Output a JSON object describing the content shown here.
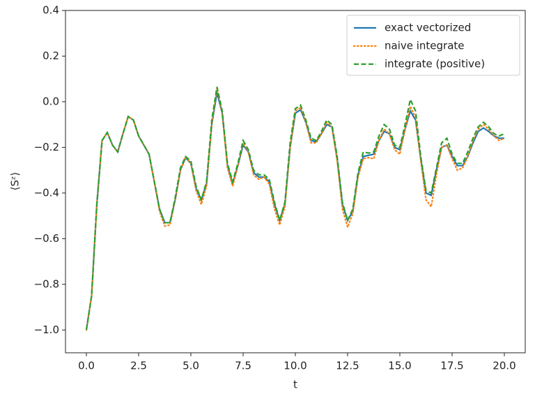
{
  "chart_data": {
    "type": "line",
    "xlabel": "t",
    "ylabel": "⟨Sᶻ⟩",
    "x": [
      0,
      0.25,
      0.5,
      0.75,
      1,
      1.25,
      1.5,
      1.75,
      2,
      2.25,
      2.5,
      2.75,
      3,
      3.25,
      3.5,
      3.75,
      4,
      4.25,
      4.5,
      4.75,
      5,
      5.25,
      5.5,
      5.75,
      6,
      6.25,
      6.5,
      6.75,
      7,
      7.25,
      7.5,
      7.75,
      8,
      8.25,
      8.5,
      8.75,
      9,
      9.25,
      9.5,
      9.75,
      10,
      10.25,
      10.5,
      10.75,
      11,
      11.25,
      11.5,
      11.75,
      12,
      12.25,
      12.5,
      12.75,
      13,
      13.25,
      13.5,
      13.75,
      14,
      14.25,
      14.5,
      14.75,
      15,
      15.25,
      15.5,
      15.75,
      16,
      16.25,
      16.5,
      16.75,
      17,
      17.25,
      17.5,
      17.75,
      18,
      18.25,
      18.5,
      18.75,
      19,
      19.25,
      19.5,
      19.75,
      20
    ],
    "series": [
      {
        "name": "exact vectorized",
        "color": "#1f77b4",
        "style": "solid",
        "values": [
          -1,
          -0.85,
          -0.45,
          -0.17,
          -0.135,
          -0.19,
          -0.22,
          -0.14,
          -0.065,
          -0.08,
          -0.15,
          -0.19,
          -0.23,
          -0.35,
          -0.47,
          -0.53,
          -0.53,
          -0.43,
          -0.3,
          -0.245,
          -0.27,
          -0.38,
          -0.43,
          -0.36,
          -0.1,
          0.04,
          -0.05,
          -0.28,
          -0.36,
          -0.28,
          -0.19,
          -0.22,
          -0.31,
          -0.33,
          -0.33,
          -0.35,
          -0.45,
          -0.52,
          -0.45,
          -0.2,
          -0.05,
          -0.035,
          -0.09,
          -0.17,
          -0.175,
          -0.14,
          -0.1,
          -0.11,
          -0.25,
          -0.45,
          -0.52,
          -0.48,
          -0.32,
          -0.24,
          -0.235,
          -0.23,
          -0.17,
          -0.13,
          -0.14,
          -0.2,
          -0.21,
          -0.12,
          -0.04,
          -0.08,
          -0.25,
          -0.4,
          -0.41,
          -0.3,
          -0.2,
          -0.19,
          -0.24,
          -0.28,
          -0.28,
          -0.24,
          -0.18,
          -0.13,
          -0.115,
          -0.13,
          -0.15,
          -0.16,
          -0.16
        ]
      },
      {
        "name": "naive integrate",
        "color": "#ff7f0e",
        "style": "dotted",
        "values": [
          -1,
          -0.85,
          -0.45,
          -0.17,
          -0.135,
          -0.19,
          -0.22,
          -0.14,
          -0.065,
          -0.08,
          -0.15,
          -0.19,
          -0.23,
          -0.35,
          -0.48,
          -0.545,
          -0.54,
          -0.43,
          -0.3,
          -0.24,
          -0.27,
          -0.39,
          -0.45,
          -0.37,
          -0.1,
          0.06,
          -0.05,
          -0.29,
          -0.37,
          -0.28,
          -0.18,
          -0.22,
          -0.32,
          -0.34,
          -0.33,
          -0.36,
          -0.47,
          -0.54,
          -0.46,
          -0.2,
          -0.04,
          -0.025,
          -0.09,
          -0.18,
          -0.18,
          -0.14,
          -0.09,
          -0.11,
          -0.26,
          -0.47,
          -0.55,
          -0.49,
          -0.33,
          -0.25,
          -0.245,
          -0.25,
          -0.17,
          -0.12,
          -0.14,
          -0.21,
          -0.23,
          -0.12,
          -0.02,
          -0.07,
          -0.26,
          -0.43,
          -0.46,
          -0.32,
          -0.2,
          -0.19,
          -0.25,
          -0.3,
          -0.29,
          -0.24,
          -0.17,
          -0.12,
          -0.1,
          -0.12,
          -0.15,
          -0.17,
          -0.16
        ]
      },
      {
        "name": "integrate (positive)",
        "color": "#2ca02c",
        "style": "dashed",
        "values": [
          -1,
          -0.85,
          -0.45,
          -0.17,
          -0.135,
          -0.19,
          -0.22,
          -0.14,
          -0.065,
          -0.08,
          -0.15,
          -0.19,
          -0.23,
          -0.35,
          -0.47,
          -0.53,
          -0.53,
          -0.42,
          -0.29,
          -0.24,
          -0.26,
          -0.37,
          -0.43,
          -0.35,
          -0.08,
          0.065,
          -0.04,
          -0.27,
          -0.35,
          -0.27,
          -0.17,
          -0.21,
          -0.3,
          -0.32,
          -0.32,
          -0.34,
          -0.44,
          -0.52,
          -0.44,
          -0.18,
          -0.03,
          -0.015,
          -0.08,
          -0.16,
          -0.17,
          -0.13,
          -0.08,
          -0.1,
          -0.24,
          -0.44,
          -0.52,
          -0.47,
          -0.31,
          -0.22,
          -0.225,
          -0.22,
          -0.15,
          -0.1,
          -0.12,
          -0.19,
          -0.2,
          -0.1,
          0.01,
          -0.04,
          -0.24,
          -0.39,
          -0.4,
          -0.29,
          -0.18,
          -0.16,
          -0.23,
          -0.27,
          -0.27,
          -0.22,
          -0.16,
          -0.11,
          -0.09,
          -0.11,
          -0.14,
          -0.15,
          -0.14
        ]
      }
    ],
    "xlim": [
      -1,
      21
    ],
    "ylim": [
      -1.1,
      0.4
    ],
    "xticks": [
      {
        "value": 0,
        "label": "0.0"
      },
      2.5,
      {
        "value": 5,
        "label": "5.0"
      },
      7.5,
      {
        "value": 10,
        "label": "10.0"
      },
      12.5,
      {
        "value": 15,
        "label": "15.0"
      },
      17.5,
      {
        "value": 20,
        "label": "20.0"
      }
    ],
    "yticks": [
      {
        "value": 0.4,
        "label": "0.4"
      },
      {
        "value": 0.2,
        "label": "0.2"
      },
      {
        "value": 0,
        "label": "0.0"
      },
      {
        "value": -0.2,
        "label": "−0.2"
      },
      {
        "value": -0.4,
        "label": "−0.4"
      },
      {
        "value": -0.6,
        "label": "−0.6"
      },
      {
        "value": -0.8,
        "label": "−0.8"
      },
      {
        "value": -1,
        "label": "−1.0"
      }
    ],
    "legend": "upper right",
    "grid": false
  }
}
